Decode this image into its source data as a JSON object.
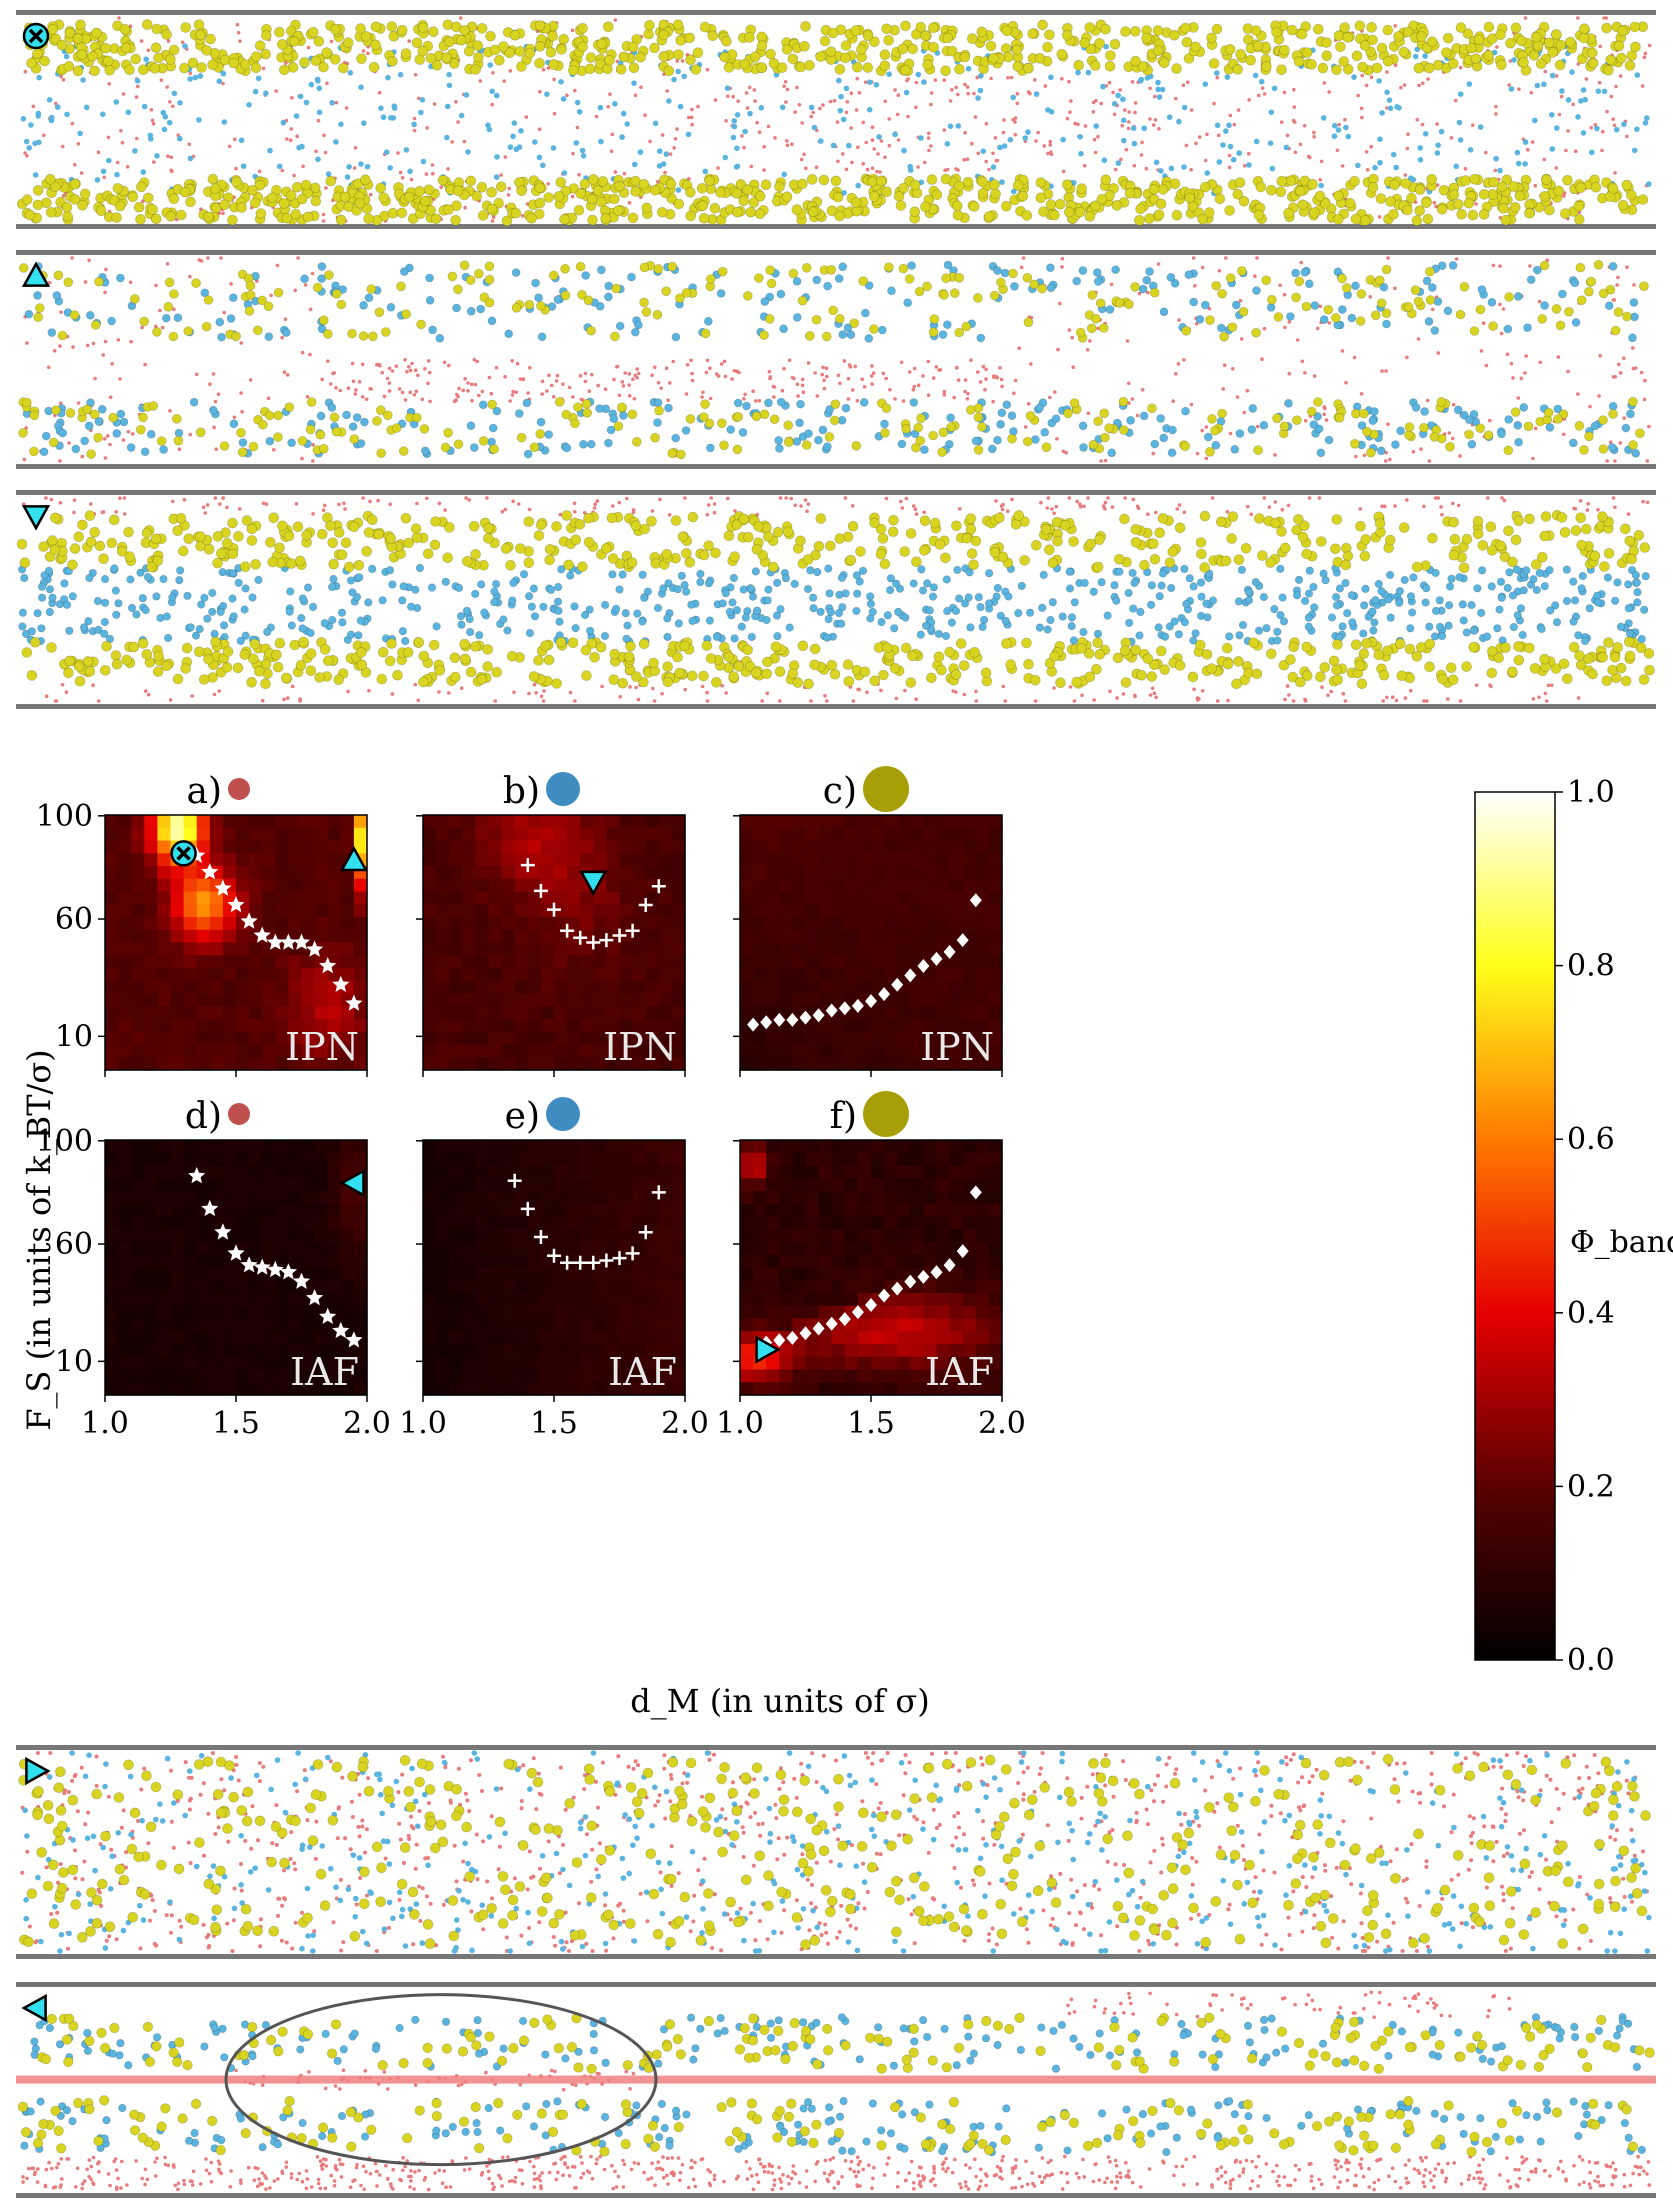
{
  "figure": {
    "panels": [
      {
        "label": "a)",
        "particle_color": "#c0504d",
        "particle_size": "small",
        "system": "IPN",
        "markers": [
          "cross",
          "triangle-up"
        ]
      },
      {
        "label": "b)",
        "particle_color": "#3e8cc0",
        "particle_size": "medium",
        "system": "IPN",
        "markers": [
          "triangle-down"
        ]
      },
      {
        "label": "c)",
        "particle_color": "#a89f08",
        "particle_size": "large",
        "system": "IPN",
        "markers": []
      },
      {
        "label": "d)",
        "particle_color": "#c0504d",
        "particle_size": "small",
        "system": "IAF",
        "markers": [
          "triangle-left"
        ]
      },
      {
        "label": "e)",
        "particle_color": "#3e8cc0",
        "particle_size": "medium",
        "system": "IAF",
        "markers": []
      },
      {
        "label": "f)",
        "particle_color": "#a89f08",
        "particle_size": "large",
        "system": "IAF",
        "markers": [
          "triangle-right"
        ]
      }
    ],
    "xlabel": "d_M (in units of σ)",
    "ylabel": "F_S (in units of k_BT/σ)",
    "xticks": [
      "1.0",
      "1.5",
      "2.0"
    ],
    "yticks": [
      "10",
      "60",
      "100"
    ],
    "colorbar": {
      "label": "Φ_band",
      "ticks": [
        "0.0",
        "0.2",
        "0.4",
        "0.6",
        "0.8",
        "1.0"
      ],
      "range": [
        0,
        1
      ]
    },
    "snapshots": [
      {
        "marker": "cross"
      },
      {
        "marker": "triangle-up"
      },
      {
        "marker": "triangle-down"
      },
      {
        "marker": "triangle-right"
      },
      {
        "marker": "triangle-left"
      }
    ],
    "snapshot_colors": {
      "small": "#e87c7c",
      "medium": "#5ab4e0",
      "large": "#d8d420",
      "wall": "#777777",
      "band_line": "#f08080",
      "marker": "#33e0f0"
    }
  },
  "chart_data": {
    "type": "heatmap",
    "x_range": [
      1.0,
      2.0
    ],
    "y_range": [
      0,
      100
    ],
    "colorbar_range": [
      0.0,
      1.0
    ],
    "series": [
      {
        "panel": "a",
        "system": "IPN",
        "marker": "star",
        "x": [
          1.35,
          1.4,
          1.45,
          1.5,
          1.55,
          1.6,
          1.65,
          1.7,
          1.75,
          1.8,
          1.85,
          1.9,
          1.95
        ],
        "y": [
          87,
          80,
          73,
          66,
          59,
          53,
          50,
          50,
          50,
          47,
          40,
          32,
          24
        ]
      },
      {
        "panel": "b",
        "system": "IPN",
        "marker": "plus",
        "x": [
          1.4,
          1.45,
          1.5,
          1.55,
          1.6,
          1.65,
          1.7,
          1.75,
          1.8,
          1.85,
          1.9
        ],
        "y": [
          83,
          72,
          64,
          55,
          52,
          50,
          51,
          53,
          55,
          66,
          74
        ]
      },
      {
        "panel": "c",
        "system": "IPN",
        "marker": "diamond",
        "x": [
          1.05,
          1.1,
          1.15,
          1.2,
          1.25,
          1.3,
          1.35,
          1.4,
          1.45,
          1.5,
          1.55,
          1.6,
          1.65,
          1.7,
          1.75,
          1.8,
          1.85,
          1.9
        ],
        "y": [
          15,
          16,
          17,
          17,
          18,
          19,
          21,
          22,
          23,
          25,
          28,
          32,
          36,
          40,
          43,
          46,
          51,
          68
        ]
      },
      {
        "panel": "d",
        "system": "IAF",
        "marker": "star",
        "x": [
          1.35,
          1.4,
          1.45,
          1.5,
          1.55,
          1.6,
          1.65,
          1.7,
          1.75,
          1.8,
          1.85,
          1.9,
          1.95
        ],
        "y": [
          89,
          75,
          65,
          56,
          51,
          50,
          49,
          48,
          44,
          37,
          29,
          23,
          19
        ]
      },
      {
        "panel": "e",
        "system": "IAF",
        "marker": "plus",
        "x": [
          1.35,
          1.4,
          1.45,
          1.5,
          1.55,
          1.6,
          1.65,
          1.7,
          1.75,
          1.8,
          1.85,
          1.9
        ],
        "y": [
          87,
          75,
          63,
          55,
          52,
          52,
          52,
          53,
          54,
          56,
          65,
          82
        ]
      },
      {
        "panel": "f",
        "system": "IAF",
        "marker": "diamond",
        "x": [
          1.1,
          1.15,
          1.2,
          1.25,
          1.3,
          1.35,
          1.4,
          1.45,
          1.5,
          1.55,
          1.6,
          1.65,
          1.7,
          1.75,
          1.8,
          1.85,
          1.9
        ],
        "y": [
          18,
          19,
          20,
          22,
          24,
          26,
          28,
          31,
          34,
          38,
          41,
          44,
          46,
          48,
          51,
          57,
          82
        ]
      }
    ],
    "special_markers": [
      {
        "panel": "a",
        "marker": "cross",
        "x": 1.3,
        "y": 88
      },
      {
        "panel": "a",
        "marker": "triangle-up",
        "x": 1.95,
        "y": 85
      },
      {
        "panel": "b",
        "marker": "triangle-down",
        "x": 1.65,
        "y": 76
      },
      {
        "panel": "d",
        "marker": "triangle-left",
        "x": 1.95,
        "y": 86
      },
      {
        "panel": "f",
        "marker": "triangle-right",
        "x": 1.1,
        "y": 15
      }
    ]
  }
}
